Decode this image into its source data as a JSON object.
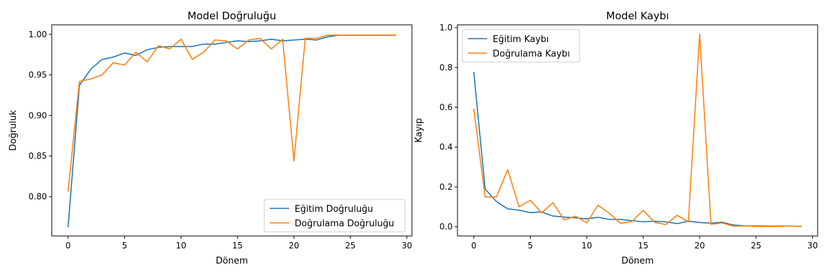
{
  "colors": {
    "train": "#1f77b4",
    "val": "#ff7f0e",
    "axis": "#000000"
  },
  "chart_data": [
    {
      "type": "line",
      "title": "Model Doğruluğu",
      "xlabel": "Dönem",
      "ylabel": "Doğruluk",
      "xlim": [
        -1.45,
        30.45
      ],
      "ylim": [
        0.7515,
        1.0117
      ],
      "xticks": [
        0,
        5,
        10,
        15,
        20,
        25,
        30
      ],
      "yticks": [
        0.8,
        0.85,
        0.9,
        0.95,
        1.0
      ],
      "ytick_labels": [
        "0.80",
        "0.85",
        "0.90",
        "0.95",
        "1.00"
      ],
      "legend_loc": "lower right",
      "x": [
        0,
        1,
        2,
        3,
        4,
        5,
        6,
        7,
        8,
        9,
        10,
        11,
        12,
        13,
        14,
        15,
        16,
        17,
        18,
        19,
        20,
        21,
        22,
        23,
        24,
        25,
        26,
        27,
        28,
        29
      ],
      "series": [
        {
          "name": "Eğitim Doğruluğu",
          "color_key": "train",
          "values": [
            0.763,
            0.937,
            0.957,
            0.969,
            0.972,
            0.977,
            0.974,
            0.981,
            0.984,
            0.985,
            0.985,
            0.985,
            0.988,
            0.988,
            0.99,
            0.992,
            0.991,
            0.992,
            0.994,
            0.992,
            0.993,
            0.994,
            0.993,
            0.997,
            0.999,
            0.999,
            0.999,
            0.999,
            0.999,
            0.999
          ]
        },
        {
          "name": "Doğrulama Doğruluğu",
          "color_key": "val",
          "values": [
            0.807,
            0.942,
            0.945,
            0.95,
            0.965,
            0.962,
            0.978,
            0.966,
            0.986,
            0.982,
            0.994,
            0.969,
            0.978,
            0.993,
            0.992,
            0.982,
            0.993,
            0.995,
            0.982,
            0.994,
            0.844,
            0.995,
            0.995,
            0.999,
            0.999,
            0.999,
            0.999,
            0.999,
            0.999,
            0.999
          ]
        }
      ]
    },
    {
      "type": "line",
      "title": "Model Kaybı",
      "xlabel": "Dönem",
      "ylabel": "Kayıp",
      "xlim": [
        -1.45,
        30.45
      ],
      "ylim": [
        -0.046,
        1.014
      ],
      "xticks": [
        0,
        5,
        10,
        15,
        20,
        25,
        30
      ],
      "yticks": [
        0.0,
        0.2,
        0.4,
        0.6,
        0.8,
        1.0
      ],
      "ytick_labels": [
        "0.0",
        "0.2",
        "0.4",
        "0.6",
        "0.8",
        "1.0"
      ],
      "legend_loc": "upper left",
      "x": [
        0,
        1,
        2,
        3,
        4,
        5,
        6,
        7,
        8,
        9,
        10,
        11,
        12,
        13,
        14,
        15,
        16,
        17,
        18,
        19,
        20,
        21,
        22,
        23,
        24,
        25,
        26,
        27,
        28,
        29
      ],
      "series": [
        {
          "name": "Eğitim Kaybı",
          "color_key": "train",
          "values": [
            0.775,
            0.19,
            0.127,
            0.09,
            0.084,
            0.071,
            0.075,
            0.054,
            0.049,
            0.045,
            0.04,
            0.048,
            0.037,
            0.037,
            0.031,
            0.025,
            0.028,
            0.025,
            0.016,
            0.028,
            0.022,
            0.018,
            0.023,
            0.009,
            0.005,
            0.005,
            0.004,
            0.004,
            0.004,
            0.002
          ]
        },
        {
          "name": "Doğrulama Kaybı",
          "color_key": "val",
          "values": [
            0.59,
            0.15,
            0.15,
            0.287,
            0.101,
            0.133,
            0.07,
            0.121,
            0.035,
            0.053,
            0.02,
            0.108,
            0.068,
            0.017,
            0.027,
            0.083,
            0.023,
            0.011,
            0.058,
            0.025,
            0.967,
            0.013,
            0.019,
            0.004,
            0.004,
            0.003,
            0.003,
            0.003,
            0.004,
            0.002
          ]
        }
      ]
    }
  ]
}
